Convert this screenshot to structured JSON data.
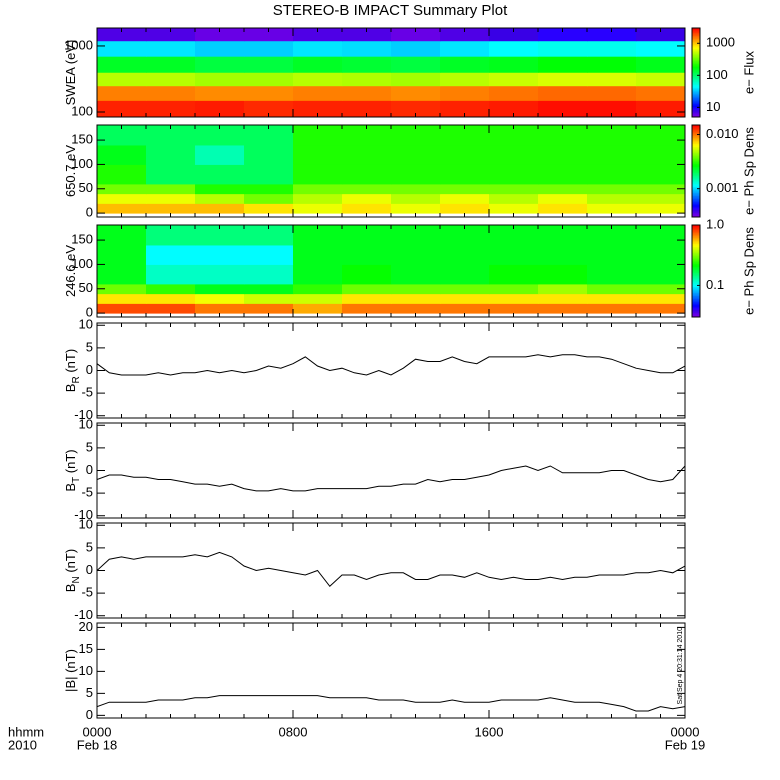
{
  "chart_data": [
    {
      "type": "heatmap",
      "title": "STEREO-B IMPACT Summary Plot",
      "ylabel": "SWEA (eV)",
      "log": true,
      "ylim": [
        84,
        1870
      ],
      "yticks": [
        100,
        1000
      ],
      "xbins": [
        0,
        2,
        4,
        6,
        8,
        10,
        12,
        14,
        16,
        18,
        20,
        22,
        24
      ],
      "ybins": [
        84,
        150,
        250,
        400,
        700,
        1200,
        1870
      ],
      "z": [
        [
          2500,
          2500,
          2600,
          2400,
          2500,
          2500,
          2400,
          2500,
          2600,
          2800,
          2800,
          2600
        ],
        [
          1500,
          1500,
          1400,
          1400,
          1500,
          1500,
          1400,
          1500,
          1600,
          1700,
          1700,
          1600
        ],
        [
          500,
          500,
          450,
          450,
          500,
          480,
          450,
          500,
          550,
          600,
          600,
          550
        ],
        [
          150,
          150,
          130,
          130,
          150,
          140,
          130,
          150,
          160,
          180,
          180,
          160
        ],
        [
          40,
          40,
          35,
          35,
          40,
          38,
          35,
          40,
          45,
          50,
          50,
          45
        ],
        [
          7,
          7,
          6,
          6,
          7,
          7,
          6,
          7,
          8,
          9,
          9,
          8
        ]
      ],
      "colorbar": {
        "label": "e− Flux",
        "lim": [
          5,
          3000
        ],
        "ticks": [
          10,
          100,
          1000
        ]
      }
    },
    {
      "type": "heatmap",
      "ylabel": "650.7 eV",
      "log": false,
      "ylim": [
        -8,
        181
      ],
      "yticks": [
        0,
        50,
        100,
        150
      ],
      "xbins": [
        0,
        2,
        4,
        6,
        8,
        10,
        12,
        14,
        16,
        18,
        20,
        22,
        24
      ],
      "ybins": [
        0,
        20,
        40,
        60,
        100,
        140,
        180
      ],
      "z": [
        [
          0.008,
          0.008,
          0.008,
          0.007,
          0.006,
          0.007,
          0.006,
          0.007,
          0.006,
          0.007,
          0.006,
          0.006
        ],
        [
          0.006,
          0.006,
          0.005,
          0.004,
          0.005,
          0.006,
          0.005,
          0.006,
          0.005,
          0.006,
          0.005,
          0.005
        ],
        [
          0.004,
          0.004,
          0.003,
          0.003,
          0.004,
          0.004,
          0.004,
          0.004,
          0.004,
          0.004,
          0.004,
          0.004
        ],
        [
          0.003,
          0.002,
          0.002,
          0.002,
          0.003,
          0.003,
          0.003,
          0.003,
          0.003,
          0.003,
          0.003,
          0.003
        ],
        [
          0.0025,
          0.002,
          0.0015,
          0.002,
          0.003,
          0.003,
          0.003,
          0.003,
          0.003,
          0.003,
          0.003,
          0.003
        ],
        [
          0.002,
          0.002,
          0.002,
          0.002,
          0.003,
          0.003,
          0.003,
          0.003,
          0.003,
          0.003,
          0.003,
          0.003
        ]
      ],
      "colorbar": {
        "label": "e− Ph Sp Dens",
        "lim": [
          0.0003,
          0.015
        ],
        "ticks": [
          {
            "value": 0.001,
            "label": "0.001"
          },
          {
            "value": 0.01,
            "label": "0.010"
          }
        ]
      }
    },
    {
      "type": "heatmap",
      "ylabel": "246.6 eV",
      "log": false,
      "ylim": [
        -8,
        181
      ],
      "yticks": [
        0,
        50,
        100,
        150
      ],
      "xbins": [
        0,
        2,
        4,
        6,
        8,
        10,
        12,
        14,
        16,
        18,
        20,
        22,
        24
      ],
      "ybins": [
        0,
        20,
        40,
        60,
        100,
        140,
        180
      ],
      "z": [
        [
          0.8,
          0.8,
          0.7,
          0.7,
          0.6,
          0.7,
          0.7,
          0.7,
          0.7,
          0.7,
          0.7,
          0.7
        ],
        [
          0.5,
          0.5,
          0.45,
          0.4,
          0.4,
          0.5,
          0.5,
          0.5,
          0.5,
          0.5,
          0.5,
          0.5
        ],
        [
          0.3,
          0.25,
          0.2,
          0.2,
          0.25,
          0.3,
          0.3,
          0.3,
          0.3,
          0.35,
          0.3,
          0.3
        ],
        [
          0.2,
          0.12,
          0.12,
          0.12,
          0.2,
          0.22,
          0.2,
          0.2,
          0.22,
          0.22,
          0.2,
          0.2
        ],
        [
          0.2,
          0.1,
          0.1,
          0.1,
          0.2,
          0.2,
          0.2,
          0.2,
          0.2,
          0.2,
          0.2,
          0.2
        ],
        [
          0.2,
          0.15,
          0.15,
          0.15,
          0.2,
          0.2,
          0.2,
          0.2,
          0.2,
          0.2,
          0.2,
          0.2
        ]
      ],
      "colorbar": {
        "label": "e− Ph Sp Dens",
        "lim": [
          0.03,
          1.0
        ],
        "ticks": [
          0.1,
          {
            "value": 1.0,
            "label": "1.0"
          }
        ]
      }
    },
    {
      "type": "line",
      "ylabel": "B",
      "ylabel_sub": "R",
      "ylabel_unit": " (nT)",
      "color": "#000000",
      "ylim": [
        -10.5,
        10.5
      ],
      "yticks": [
        -10,
        -5,
        0,
        5,
        10
      ],
      "x": [
        0,
        0.5,
        1,
        1.5,
        2,
        2.5,
        3,
        3.5,
        4,
        4.5,
        5,
        5.5,
        6,
        6.5,
        7,
        7.5,
        8,
        8.5,
        9,
        9.5,
        10,
        10.5,
        11,
        11.5,
        12,
        12.5,
        13,
        13.5,
        14,
        14.5,
        15,
        15.5,
        16,
        16.5,
        17,
        17.5,
        18,
        18.5,
        19,
        19.5,
        20,
        20.5,
        21,
        21.5,
        22,
        22.5,
        23,
        23.5,
        24
      ],
      "values": [
        1.5,
        -0.5,
        -1,
        -1,
        -1,
        -0.5,
        -1,
        -0.5,
        -0.5,
        0,
        -0.5,
        0,
        -0.5,
        0,
        1,
        0.5,
        1.5,
        3,
        1,
        0,
        0.5,
        -0.5,
        -1,
        0,
        -1,
        0.5,
        2.5,
        2,
        2,
        3,
        2,
        1.5,
        3,
        3,
        3,
        3,
        3.5,
        3,
        3.5,
        3.5,
        3,
        3,
        2.5,
        1.5,
        0.5,
        0,
        -0.5,
        -0.5,
        1
      ]
    },
    {
      "type": "line",
      "ylabel": "B",
      "ylabel_sub": "T",
      "ylabel_unit": " (nT)",
      "color": "#000000",
      "ylim": [
        -10.5,
        10.5
      ],
      "yticks": [
        -10,
        -5,
        0,
        5,
        10
      ],
      "x": [
        0,
        0.5,
        1,
        1.5,
        2,
        2.5,
        3,
        3.5,
        4,
        4.5,
        5,
        5.5,
        6,
        6.5,
        7,
        7.5,
        8,
        8.5,
        9,
        9.5,
        10,
        10.5,
        11,
        11.5,
        12,
        12.5,
        13,
        13.5,
        14,
        14.5,
        15,
        15.5,
        16,
        16.5,
        17,
        17.5,
        18,
        18.5,
        19,
        19.5,
        20,
        20.5,
        21,
        21.5,
        22,
        22.5,
        23,
        23.5,
        24
      ],
      "values": [
        -2,
        -1,
        -1,
        -1.5,
        -1.5,
        -2,
        -2,
        -2.5,
        -3,
        -3,
        -3.5,
        -3,
        -4,
        -4.5,
        -4.5,
        -4,
        -4.5,
        -4.5,
        -4,
        -4,
        -4,
        -4,
        -4,
        -3.5,
        -3.5,
        -3,
        -3,
        -2,
        -2.5,
        -2,
        -2,
        -1.5,
        -1,
        0,
        0.5,
        1,
        0,
        1,
        -0.5,
        -0.5,
        -0.5,
        -0.5,
        0,
        0,
        -1,
        -2,
        -2.5,
        -2,
        1
      ]
    },
    {
      "type": "line",
      "ylabel": "B",
      "ylabel_sub": "N",
      "ylabel_unit": " (nT)",
      "color": "#000000",
      "ylim": [
        -10.5,
        10.5
      ],
      "yticks": [
        -10,
        -5,
        0,
        5,
        10
      ],
      "x": [
        0,
        0.5,
        1,
        1.5,
        2,
        2.5,
        3,
        3.5,
        4,
        4.5,
        5,
        5.5,
        6,
        6.5,
        7,
        7.5,
        8,
        8.5,
        9,
        9.5,
        10,
        10.5,
        11,
        11.5,
        12,
        12.5,
        13,
        13.5,
        14,
        14.5,
        15,
        15.5,
        16,
        16.5,
        17,
        17.5,
        18,
        18.5,
        19,
        19.5,
        20,
        20.5,
        21,
        21.5,
        22,
        22.5,
        23,
        23.5,
        24
      ],
      "values": [
        0,
        2.5,
        3,
        2.5,
        3,
        3,
        3,
        3,
        3.5,
        3,
        4,
        3,
        1,
        0,
        0.5,
        0,
        -0.5,
        -1,
        0,
        -3.5,
        -1,
        -1,
        -2,
        -1,
        -0.5,
        -0.5,
        -2,
        -2,
        -1,
        -1,
        -1.5,
        -0.5,
        -1.5,
        -2,
        -1.5,
        -2,
        -2,
        -1.5,
        -2,
        -1.5,
        -1.5,
        -1,
        -1,
        -1,
        -0.5,
        -0.5,
        0,
        -0.5,
        1
      ]
    },
    {
      "type": "line",
      "ylabel": "|B| (nT)",
      "color": "#000000",
      "ylim": [
        -0.6,
        21
      ],
      "yticks": [
        0,
        5,
        10,
        15,
        20
      ],
      "x": [
        0,
        0.5,
        1,
        1.5,
        2,
        2.5,
        3,
        3.5,
        4,
        4.5,
        5,
        5.5,
        6,
        6.5,
        7,
        7.5,
        8,
        8.5,
        9,
        9.5,
        10,
        10.5,
        11,
        11.5,
        12,
        12.5,
        13,
        13.5,
        14,
        14.5,
        15,
        15.5,
        16,
        16.5,
        17,
        17.5,
        18,
        18.5,
        19,
        19.5,
        20,
        20.5,
        21,
        21.5,
        22,
        22.5,
        23,
        23.5,
        24
      ],
      "values": [
        2,
        3,
        3,
        3,
        3,
        3.5,
        3.5,
        3.5,
        4,
        4,
        4.5,
        4.5,
        4.5,
        4.5,
        4.5,
        4.5,
        4.5,
        4.5,
        4.5,
        4,
        4,
        4,
        4,
        3.5,
        3.5,
        3.5,
        3,
        3,
        3,
        3.5,
        3,
        3,
        3,
        3.5,
        3.5,
        3.5,
        3.5,
        4,
        3.5,
        3,
        3,
        3,
        2.5,
        2,
        1,
        1,
        2,
        1.5,
        2
      ],
      "xlim": [
        0,
        24
      ],
      "xticks": [
        {
          "value": 0,
          "label": "0000"
        },
        {
          "value": 8,
          "label": "0800"
        },
        {
          "value": 16,
          "label": "1600"
        },
        {
          "value": 24,
          "label": "0000"
        }
      ],
      "dates": [
        {
          "value": 0,
          "label": "Feb 18"
        },
        {
          "value": 24,
          "label": "Feb 19"
        }
      ],
      "xlabel": [
        "hhmm",
        "2010"
      ],
      "stamp": "Sat Sep  4 20:31:14 2010"
    }
  ]
}
